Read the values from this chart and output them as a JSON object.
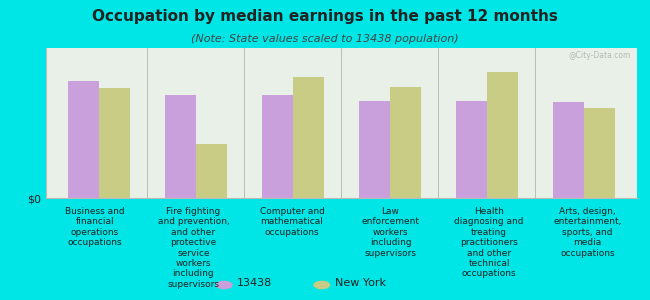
{
  "title": "Occupation by median earnings in the past 12 months",
  "subtitle": "(Note: State values scaled to 13438 population)",
  "background_color": "#00e5e5",
  "plot_bg_color": "#e8f0e8",
  "categories": [
    "Business and\nfinancial\noperations\noccupations",
    "Fire fighting\nand prevention,\nand other\nprotective\nservice\nworkers\nincluding\nsupervisors",
    "Computer and\nmathematical\noccupations",
    "Law\nenforcement\nworkers\nincluding\nsupervisors",
    "Health\ndiagnosing and\ntreating\npractitioners\nand other\ntechnical\noccupations",
    "Arts, design,\nentertainment,\nsports, and\nmedia\noccupations"
  ],
  "series1_label": "13438",
  "series2_label": "New York",
  "series1_color": "#c9a0dc",
  "series2_color": "#c8cc84",
  "series1_values": [
    0.82,
    0.72,
    0.72,
    0.68,
    0.68,
    0.67
  ],
  "series2_values": [
    0.77,
    0.38,
    0.85,
    0.78,
    0.88,
    0.63
  ],
  "ylabel": "$0",
  "bar_width": 0.32,
  "title_fontsize": 11,
  "subtitle_fontsize": 8,
  "label_fontsize": 6.5,
  "legend_fontsize": 8,
  "watermark": "@City-Data.com"
}
